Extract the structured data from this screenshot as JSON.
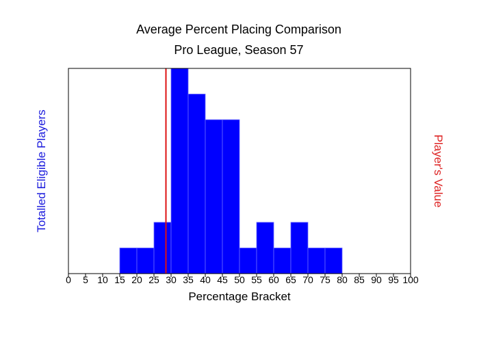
{
  "chart_data": {
    "type": "bar",
    "title": "Average Percent Placing Comparison",
    "subtitle": "Pro League, Season 57",
    "xlabel": "Percentage Bracket",
    "ylabel_left": "Totalled Eligible Players",
    "ylabel_right": "Player's Value",
    "xlim": [
      0,
      100
    ],
    "ylim": [
      0,
      8
    ],
    "x_ticks": [
      0,
      5,
      10,
      15,
      20,
      25,
      30,
      35,
      40,
      45,
      50,
      55,
      60,
      65,
      70,
      75,
      80,
      85,
      90,
      95,
      100
    ],
    "bin_width": 5,
    "bins": [
      {
        "start": 15,
        "count": 1
      },
      {
        "start": 20,
        "count": 1
      },
      {
        "start": 25,
        "count": 2
      },
      {
        "start": 30,
        "count": 8
      },
      {
        "start": 35,
        "count": 7
      },
      {
        "start": 40,
        "count": 6
      },
      {
        "start": 45,
        "count": 6
      },
      {
        "start": 50,
        "count": 1
      },
      {
        "start": 55,
        "count": 2
      },
      {
        "start": 60,
        "count": 1
      },
      {
        "start": 65,
        "count": 2
      },
      {
        "start": 70,
        "count": 1
      },
      {
        "start": 75,
        "count": 1
      }
    ],
    "player_value": 28.5,
    "colors": {
      "bars": "#0000ff",
      "bar_edge": "#6a6aff",
      "player_line": "#dd1111",
      "left_label": "#1a1add",
      "right_label": "#dd2222"
    },
    "grid": false,
    "legend": "none"
  }
}
